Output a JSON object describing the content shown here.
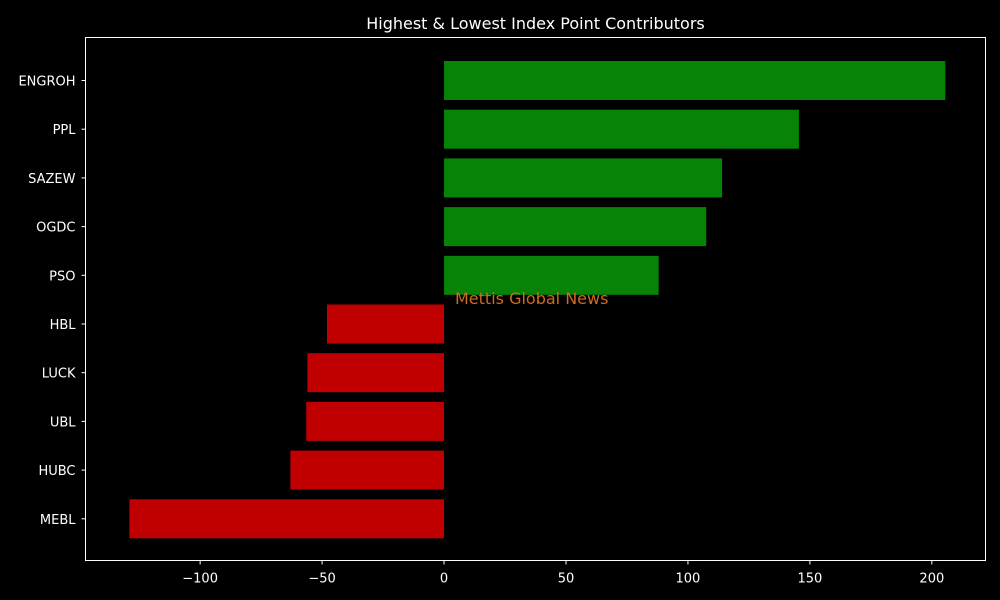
{
  "chart_data": {
    "type": "bar",
    "orientation": "horizontal",
    "title": "Highest & Lowest Index Point Contributors",
    "xlabel": "",
    "ylabel": "",
    "categories": [
      "ENGROH",
      "PPL",
      "SAZEW",
      "OGDC",
      "PSO",
      "HBL",
      "LUCK",
      "UBL",
      "HUBC",
      "MEBL"
    ],
    "values": [
      205.5,
      145.5,
      114,
      107.5,
      88,
      -48,
      -56,
      -56.5,
      -63,
      -129
    ],
    "xlim": [
      -147,
      222
    ],
    "xticks": [
      -100,
      -50,
      0,
      50,
      100,
      150,
      200
    ],
    "xtick_labels": [
      "−100",
      "−50",
      "0",
      "50",
      "100",
      "150",
      "200"
    ],
    "positive_color": "#078407",
    "negative_color": "#c00000",
    "background": "#000000",
    "text_color": "#ffffff",
    "grid": false,
    "watermark": "Mettis Global News",
    "watermark_color": "#d2691e"
  }
}
